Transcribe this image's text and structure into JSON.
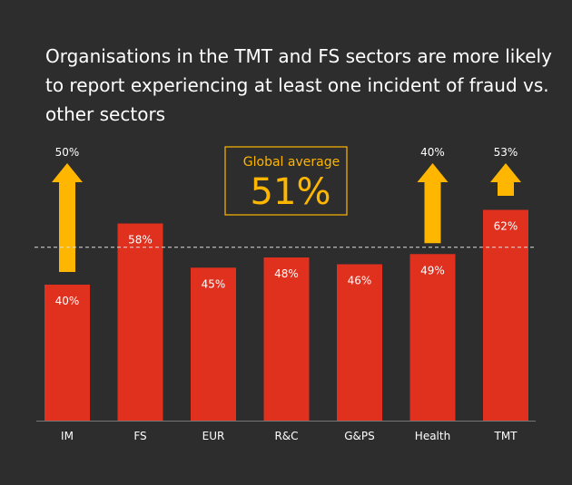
{
  "title": "Organisations in the TMT and FS sectors are more likely to report experiencing at least one incident of fraud vs. other sectors",
  "chart_data": {
    "type": "bar",
    "categories": [
      "IM",
      "FS",
      "EUR",
      "R&C",
      "G&PS",
      "Health",
      "TMT"
    ],
    "values": [
      40,
      58,
      45,
      48,
      46,
      49,
      62
    ],
    "value_labels": [
      "40%",
      "58%",
      "45%",
      "48%",
      "46%",
      "49%",
      "62%"
    ],
    "global_average": 51,
    "global_average_label": "Global average",
    "global_average_value": "51%",
    "comparison_arrows": [
      {
        "category": "IM",
        "label": "50%"
      },
      {
        "category": "Health",
        "label": "40%"
      },
      {
        "category": "TMT",
        "label": "53%"
      }
    ],
    "ylim": [
      0,
      100
    ],
    "colors": {
      "bar": "#e0301e",
      "accent": "#ffb600",
      "text": "#ffffff",
      "background": "#2d2d2d"
    }
  }
}
